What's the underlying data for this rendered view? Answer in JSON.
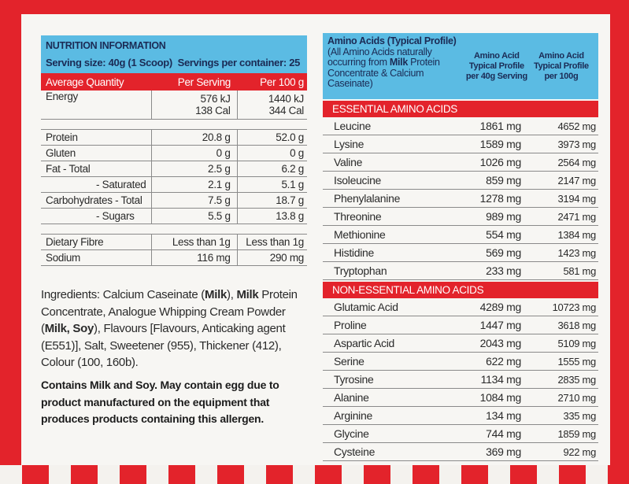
{
  "nutrition": {
    "title": "NUTRITION INFORMATION",
    "serving_size": "Serving size: 40g (1 Scoop)",
    "servings_per_container": "Servings per container: 25",
    "columns": [
      "Average Quantity",
      "Per Serving",
      "Per 100 g"
    ],
    "rows": [
      [
        [
          "Energy"
        ],
        [
          "576 kJ",
          "138 Cal"
        ],
        [
          "1440 kJ",
          "344 Cal"
        ]
      ],
      [
        [
          "Protein"
        ],
        [
          "20.8 g"
        ],
        [
          "52.0 g"
        ]
      ],
      [
        [
          "Gluten"
        ],
        [
          "0 g"
        ],
        [
          "0 g"
        ]
      ],
      [
        [
          "Fat - Total"
        ],
        [
          "2.5 g"
        ],
        [
          "6.2 g"
        ]
      ],
      [
        [
          "- Saturated"
        ],
        [
          "2.1 g"
        ],
        [
          "5.1 g"
        ]
      ],
      [
        [
          "Carbohydrates - Total"
        ],
        [
          "7.5 g"
        ],
        [
          "18.7 g"
        ]
      ],
      [
        [
          "- Sugars"
        ],
        [
          "5.5 g"
        ],
        [
          "13.8 g"
        ]
      ],
      [
        [
          "Dietary Fibre"
        ],
        [
          "Less than 1g"
        ],
        [
          "Less than 1g"
        ]
      ],
      [
        [
          "Sodium"
        ],
        [
          "116 mg"
        ],
        [
          "290 mg"
        ]
      ]
    ]
  },
  "ingredients": [
    {
      "text": "Ingredients: Calcium Caseinate (",
      "bold": false
    },
    {
      "text": "Milk",
      "bold": true
    },
    {
      "text": "), ",
      "bold": false
    },
    {
      "text": "Milk",
      "bold": true
    },
    {
      "text": " Protein Concentrate, Analogue Whipping Cream Powder (",
      "bold": false
    },
    {
      "text": "Milk, Soy",
      "bold": true
    },
    {
      "text": "), Flavours [Flavours, Anticaking agent (E551)], Salt, Sweetener (955), Thickener (412), Colour (100, 160b).",
      "bold": false
    }
  ],
  "allergen": "Contains Milk and Soy. May contain egg due to product manufactured on the equipment that produces products containing this allergen.",
  "amino": {
    "title": "Amino Acids (Typical Profile)",
    "note": [
      {
        "text": "(All Amino Acids naturally occurring from ",
        "bold": false
      },
      {
        "text": "Milk",
        "bold": true
      },
      {
        "text": " Protein Concentrate & Calcium Caseinate)",
        "bold": false
      }
    ],
    "columns": [
      "Amino Acid Typical Profile per 40g Serving",
      "Amino Acid Typical Profile per 100g"
    ],
    "sections": [
      {
        "title": "ESSENTIAL AMINO ACIDS",
        "rows": [
          [
            "Leucine",
            "1861 mg",
            "4652 mg"
          ],
          [
            "Lysine",
            "1589 mg",
            "3973 mg"
          ],
          [
            "Valine",
            "1026 mg",
            "2564 mg"
          ],
          [
            "Isoleucine",
            "859 mg",
            "2147 mg"
          ],
          [
            "Phenylalanine",
            "1278 mg",
            "3194 mg"
          ],
          [
            "Threonine",
            "989 mg",
            "2471 mg"
          ],
          [
            "Methionine",
            "554 mg",
            "1384 mg"
          ],
          [
            "Histidine",
            "569 mg",
            "1423 mg"
          ],
          [
            "Tryptophan",
            "233 mg",
            "581 mg"
          ]
        ]
      },
      {
        "title": "NON-ESSENTIAL AMINO ACIDS",
        "rows": [
          [
            "Glutamic Acid",
            "4289 mg",
            "10723 mg"
          ],
          [
            "Proline",
            "1447 mg",
            "3618 mg"
          ],
          [
            "Aspartic Acid",
            "2043 mg",
            "5109 mg"
          ],
          [
            "Serine",
            "622 mg",
            "1555 mg"
          ],
          [
            "Tyrosine",
            "1134 mg",
            "2835 mg"
          ],
          [
            "Alanine",
            "1084 mg",
            "2710 mg"
          ],
          [
            "Arginine",
            "134 mg",
            "335 mg"
          ],
          [
            "Glycine",
            "744 mg",
            "1859 mg"
          ],
          [
            "Cysteine",
            "369 mg",
            "922 mg"
          ]
        ]
      }
    ]
  }
}
